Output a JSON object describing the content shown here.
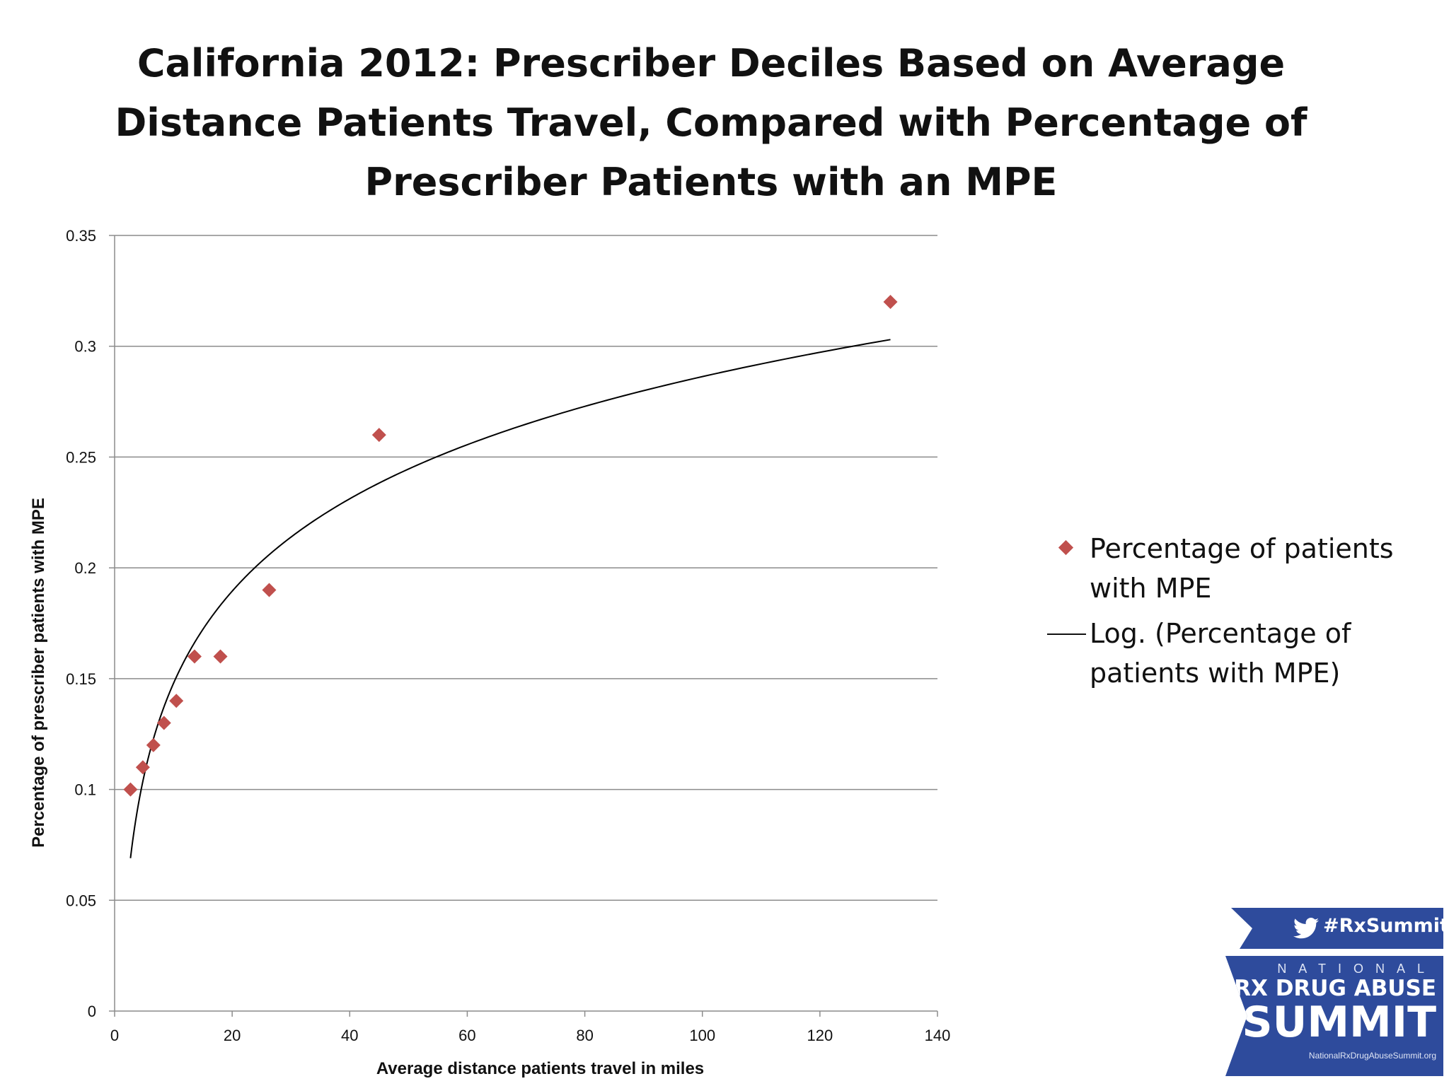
{
  "chart_data": {
    "type": "scatter",
    "title_lines": [
      "California 2012: Prescriber Deciles Based on Average",
      "Distance Patients Travel, Compared with Percentage of",
      "Prescriber Patients with an MPE"
    ],
    "xlabel": "Average distance patients travel in miles",
    "ylabel": "Percentage of prescriber patients with MPE",
    "xlim": [
      0,
      140
    ],
    "ylim": [
      0,
      0.35
    ],
    "xticks": [
      "0",
      "20",
      "40",
      "60",
      "80",
      "100",
      "120",
      "140"
    ],
    "yticks": [
      "0",
      "0.05",
      "0.1",
      "0.15",
      "0.2",
      "0.25",
      "0.3",
      "0.35"
    ],
    "grid": true,
    "legend_position": "right",
    "series": [
      {
        "name": "Percentage of patients with MPE",
        "name_lines": [
          "Percentage of patients",
          "with MPE"
        ],
        "type": "scatter",
        "color": "#c0504d",
        "marker": "diamond",
        "x": [
          2.7,
          4.8,
          6.6,
          8.4,
          10.5,
          13.6,
          18.0,
          26.3,
          45.0,
          132.0
        ],
        "y": [
          0.1,
          0.11,
          0.12,
          0.13,
          0.14,
          0.16,
          0.16,
          0.19,
          0.26,
          0.32
        ]
      },
      {
        "name": "Log. (Percentage of patients with MPE)",
        "name_lines": [
          "Log. (Percentage of",
          "patients with MPE)"
        ],
        "type": "trendline-log",
        "color": "#000000",
        "x_range": [
          2.7,
          132.0
        ],
        "y_at_ends": [
          0.069,
          0.303
        ]
      }
    ]
  },
  "logo": {
    "hashtag": "#RxSummit",
    "line1": "NATIONAL",
    "line2": "RX DRUG ABUSE",
    "line3": "SUMMIT",
    "url": "NationalRxDrugAbuseSummit.org",
    "color": "#2e4b9c"
  }
}
